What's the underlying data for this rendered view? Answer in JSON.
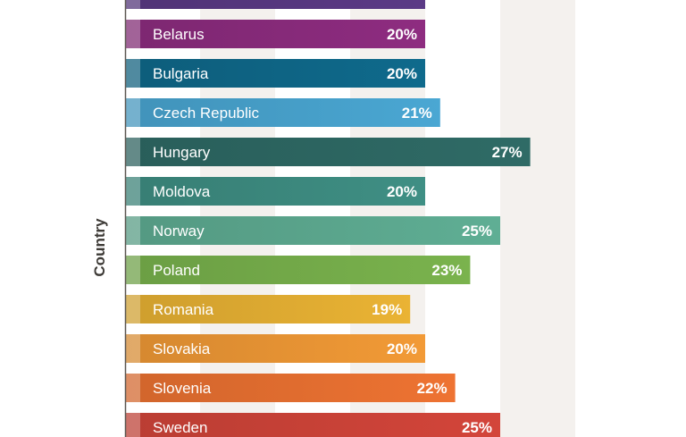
{
  "chart_data": {
    "type": "bar",
    "orientation": "horizontal",
    "ylabel": "Country",
    "categories": [
      "",
      "Belarus",
      "Bulgaria",
      "Czech Republic",
      "Hungary",
      "Moldova",
      "Norway",
      "Poland",
      "Romania",
      "Slovakia",
      "Slovenia",
      "Sweden"
    ],
    "values": [
      20,
      20,
      20,
      21,
      27,
      20,
      25,
      23,
      19,
      20,
      22,
      25
    ],
    "value_labels": [
      "",
      "20%",
      "20%",
      "21%",
      "27%",
      "20%",
      "25%",
      "23%",
      "19%",
      "20%",
      "22%",
      "25%"
    ],
    "colors": [
      "#5b3a86",
      "#8e2c80",
      "#0f6a8c",
      "#4aa7d3",
      "#2f6b66",
      "#3f8f84",
      "#5fae94",
      "#7ab34d",
      "#eab334",
      "#f29a36",
      "#ee7332",
      "#d3453a"
    ],
    "grid": true,
    "xlim": [
      0,
      30
    ]
  }
}
